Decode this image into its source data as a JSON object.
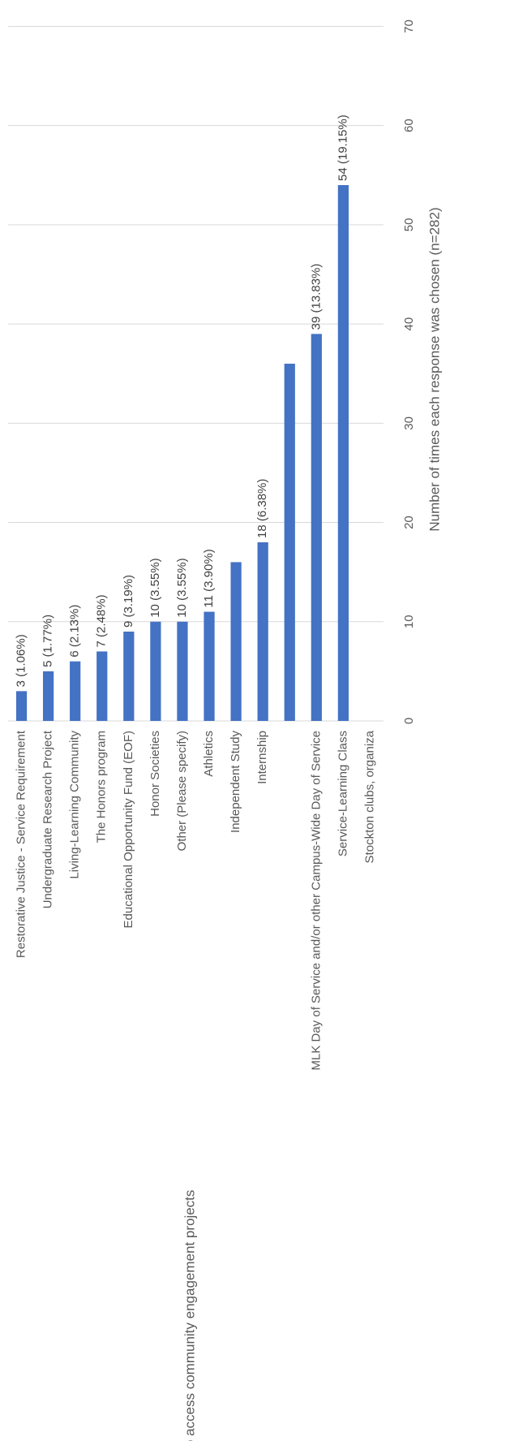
{
  "chart_data": {
    "type": "bar",
    "orientation": "horizontal",
    "x_label": "Number of times each response was chosen (n=282)",
    "y_label": "Ways to access community engagement projects",
    "categories": [
      "Restorative Justice - Service Requirement",
      "Undergraduate Research Project",
      "Living-Learning Community",
      "The Honors program",
      "Educational Opportunity Fund (EOF)",
      "Honor Societies",
      "Other (Please specify)",
      "Athletics",
      "Independent Study",
      "Internship",
      null,
      "MLK Day of Service and/or other Campus-Wide Day of Service",
      "Service-Learning Class",
      "Stockton clubs, organiza"
    ],
    "values": [
      3,
      5,
      6,
      7,
      9,
      10,
      10,
      11,
      16,
      18,
      36,
      39,
      54,
      null
    ],
    "value_labels": [
      "3 (1.06%)",
      "5 (1.77%)",
      "6 (2.13%)",
      "7 (2.48%)",
      "9 (3.19%)",
      "10 (3.55%)",
      "10 (3.55%)",
      "11 (3.90%)",
      null,
      "18 (6.38%)",
      null,
      "39 (13.83%)",
      "54 (19.15%)",
      null
    ],
    "color": "#4472c4",
    "xlim": [
      0,
      72
    ],
    "xticks": [
      0,
      10,
      20,
      30,
      40,
      50,
      60,
      70
    ],
    "grid": true
  }
}
